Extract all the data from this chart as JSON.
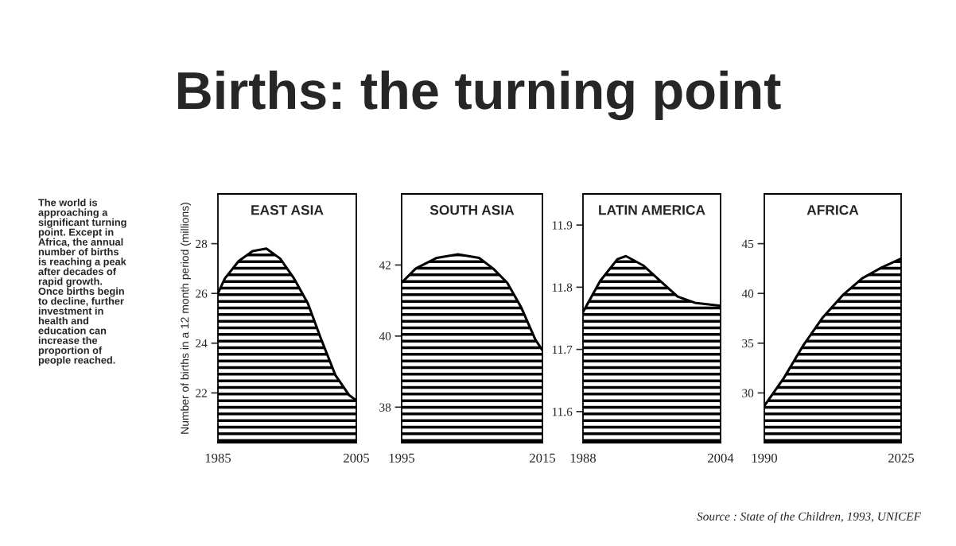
{
  "chart_data": [
    {
      "type": "other",
      "title": "Births: the turning point",
      "annotations": [
        "The world is\napproaching a\nsignificant turning\npoint. Except in\nAfrica, the annual\nnumber of births\nis reaching a peak\nafter decades of\nrapid growth.\nOnce births begin\nto decline, further\ninvestment in\nhealth and\neducation can\nincrease the\nproportion of\npeople reached.",
        "Source : State of the Children, 1993, UNICEF"
      ]
    },
    {
      "type": "area",
      "title": "EAST ASIA",
      "ylabel": "Number of births in a 12 month period (millions)",
      "x": [
        1985,
        1986,
        1988,
        1990,
        1992,
        1994,
        1996,
        1998,
        2000,
        2002,
        2004,
        2005
      ],
      "series": [
        {
          "color": "#000000",
          "values": [
            26.0,
            26.6,
            27.3,
            27.7,
            27.8,
            27.4,
            26.6,
            25.6,
            24.1,
            22.7,
            21.9,
            21.7
          ]
        }
      ],
      "xlim": [
        1985,
        2005
      ],
      "xticks": [
        1985,
        2005
      ],
      "ylim": [
        20,
        30
      ],
      "yticks": [
        22,
        24,
        26,
        28
      ],
      "grid": false
    },
    {
      "type": "area",
      "title": "SOUTH ASIA",
      "x": [
        1995,
        1997,
        2000,
        2003,
        2006,
        2008,
        2010,
        2012,
        2014,
        2015
      ],
      "series": [
        {
          "color": "#000000",
          "values": [
            41.5,
            41.9,
            42.2,
            42.3,
            42.2,
            41.9,
            41.5,
            40.8,
            39.9,
            39.6
          ]
        }
      ],
      "xlim": [
        1995,
        2015
      ],
      "xticks": [
        1995,
        2015
      ],
      "ylim": [
        37,
        44
      ],
      "yticks": [
        38,
        40,
        42
      ],
      "grid": false
    },
    {
      "type": "area",
      "title": "LATIN AMERICA",
      "x": [
        1988,
        1990,
        1992,
        1993,
        1995,
        1997,
        1999,
        2001,
        2004
      ],
      "series": [
        {
          "color": "#000000",
          "values": [
            11.76,
            11.81,
            11.845,
            11.85,
            11.835,
            11.81,
            11.785,
            11.775,
            11.77
          ]
        }
      ],
      "xlim": [
        1988,
        2004
      ],
      "xticks": [
        1988,
        2004
      ],
      "ylim": [
        11.55,
        11.95
      ],
      "yticks": [
        11.6,
        11.7,
        11.8,
        11.9
      ],
      "grid": false
    },
    {
      "type": "area",
      "title": "AFRICA",
      "x": [
        1990,
        1995,
        2000,
        2005,
        2010,
        2015,
        2020,
        2025
      ],
      "series": [
        {
          "color": "#000000",
          "values": [
            28.7,
            31.5,
            34.8,
            37.6,
            39.8,
            41.5,
            42.6,
            43.5
          ]
        }
      ],
      "xlim": [
        1990,
        2025
      ],
      "xticks": [
        1990,
        2025
      ],
      "ylim": [
        25,
        50
      ],
      "yticks": [
        30,
        35,
        40,
        45
      ],
      "grid": false
    }
  ]
}
